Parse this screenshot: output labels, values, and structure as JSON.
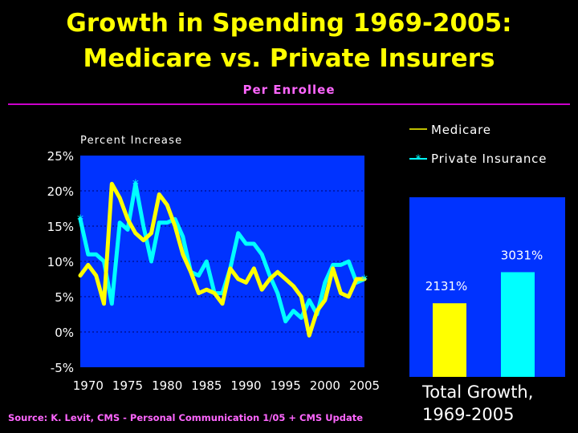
{
  "header": {
    "title_line1": "Growth in Spending 1969-2005:",
    "title_line2": "Medicare vs. Private Insurers",
    "subtitle": "Per Enrollee"
  },
  "source": "Source: K. Levit, CMS - Personal Communication 1/05 + CMS Update",
  "colors": {
    "background": "#000000",
    "title": "#FFFF00",
    "subtitle": "#FF66FF",
    "plot_bg": "#0033FF",
    "medicare": "#FFFF00",
    "private": "#00FFFF",
    "gridline": "#000066",
    "axis_text": "#FFFFFF"
  },
  "chart_data": [
    {
      "type": "line",
      "title": "",
      "ylabel": "Percent Increase",
      "xlabel": "",
      "ylim": [
        -5,
        25
      ],
      "xlim": [
        1969,
        2005
      ],
      "yticks": [
        {
          "value": 25,
          "label": "25%"
        },
        {
          "value": 20,
          "label": "20%"
        },
        {
          "value": 15,
          "label": "15%"
        },
        {
          "value": 10,
          "label": "10%"
        },
        {
          "value": 5,
          "label": "5%"
        },
        {
          "value": 0,
          "label": "0%"
        },
        {
          "value": -5,
          "label": "-5%"
        }
      ],
      "xticks": [
        {
          "value": 1970,
          "label": "1970"
        },
        {
          "value": 1975,
          "label": "1975"
        },
        {
          "value": 1980,
          "label": "1980"
        },
        {
          "value": 1985,
          "label": "1985"
        },
        {
          "value": 1990,
          "label": "1990"
        },
        {
          "value": 1995,
          "label": "1995"
        },
        {
          "value": 2000,
          "label": "2000"
        },
        {
          "value": 2005,
          "label": "2005"
        }
      ],
      "x": [
        1969,
        1970,
        1971,
        1972,
        1973,
        1974,
        1975,
        1976,
        1977,
        1978,
        1979,
        1980,
        1981,
        1982,
        1983,
        1984,
        1985,
        1986,
        1987,
        1988,
        1989,
        1990,
        1991,
        1992,
        1993,
        1994,
        1995,
        1996,
        1997,
        1998,
        1999,
        2000,
        2001,
        2002,
        2003,
        2004,
        2005
      ],
      "legend": {
        "position": "top-right",
        "medicare_label": "Medicare",
        "private_label": "Private Insurance"
      },
      "series": [
        {
          "name": "Medicare",
          "color": "#FFFF00",
          "values": [
            8,
            9.5,
            8,
            4,
            21,
            19,
            16,
            14,
            13,
            14,
            19.5,
            18,
            15,
            11,
            8.5,
            5.5,
            6,
            5.5,
            4,
            9,
            7.5,
            7,
            9,
            6,
            7.5,
            8.5,
            7.5,
            6.5,
            5,
            -0.5,
            3,
            4.5,
            9,
            5.5,
            5,
            7.5,
            7.5
          ]
        },
        {
          "name": "Private Insurance",
          "color": "#00FFFF",
          "values": [
            16,
            11,
            11,
            10,
            4,
            15.5,
            14.5,
            21,
            15,
            10,
            15.5,
            15.5,
            16,
            13.5,
            8.5,
            8,
            10,
            5.5,
            5.5,
            9,
            14,
            12.5,
            12.5,
            11,
            8,
            5.5,
            1.5,
            3,
            2,
            4.5,
            2.5,
            7,
            9.5,
            9.5,
            10,
            7,
            7.5
          ]
        }
      ]
    },
    {
      "type": "bar",
      "title": "Total Growth, 1969-2005",
      "title_line1": "Total Growth,",
      "title_line2": "1969-2005",
      "categories": [
        "Medicare",
        "Private Insurance"
      ],
      "values": [
        2131,
        3031
      ],
      "value_labels": [
        "2131%",
        "3031%"
      ],
      "ylim": [
        0,
        5200
      ],
      "colors": [
        "#FFFF00",
        "#00FFFF"
      ]
    }
  ]
}
